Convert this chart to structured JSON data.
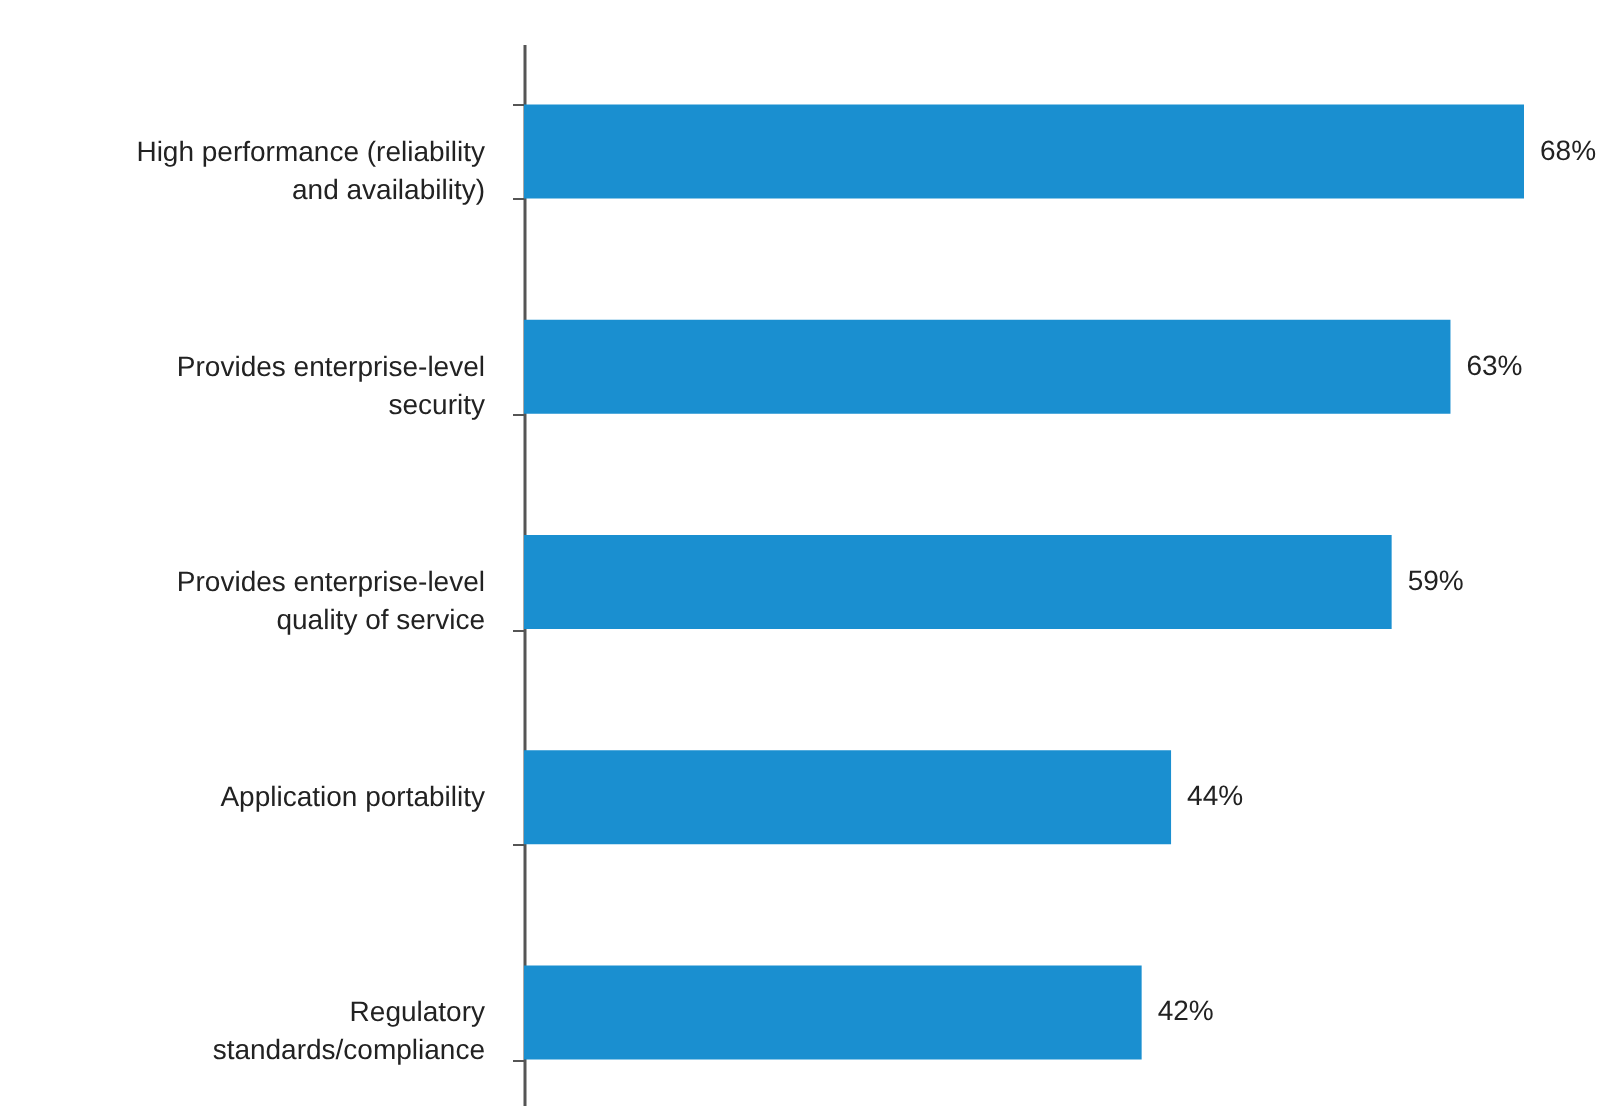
{
  "chart_data": {
    "type": "bar",
    "orientation": "horizontal",
    "categories": [
      "High performance (reliability and availability)",
      "Provides enterprise-level security",
      "Provides enterprise-level quality of service",
      "Application portability",
      "Regulatory standards/compliance"
    ],
    "values": [
      68,
      63,
      59,
      44,
      42
    ],
    "value_labels": [
      "68%",
      "63%",
      "59%",
      "44%",
      "42%"
    ],
    "color": "#1a8fd0",
    "grid": false
  }
}
